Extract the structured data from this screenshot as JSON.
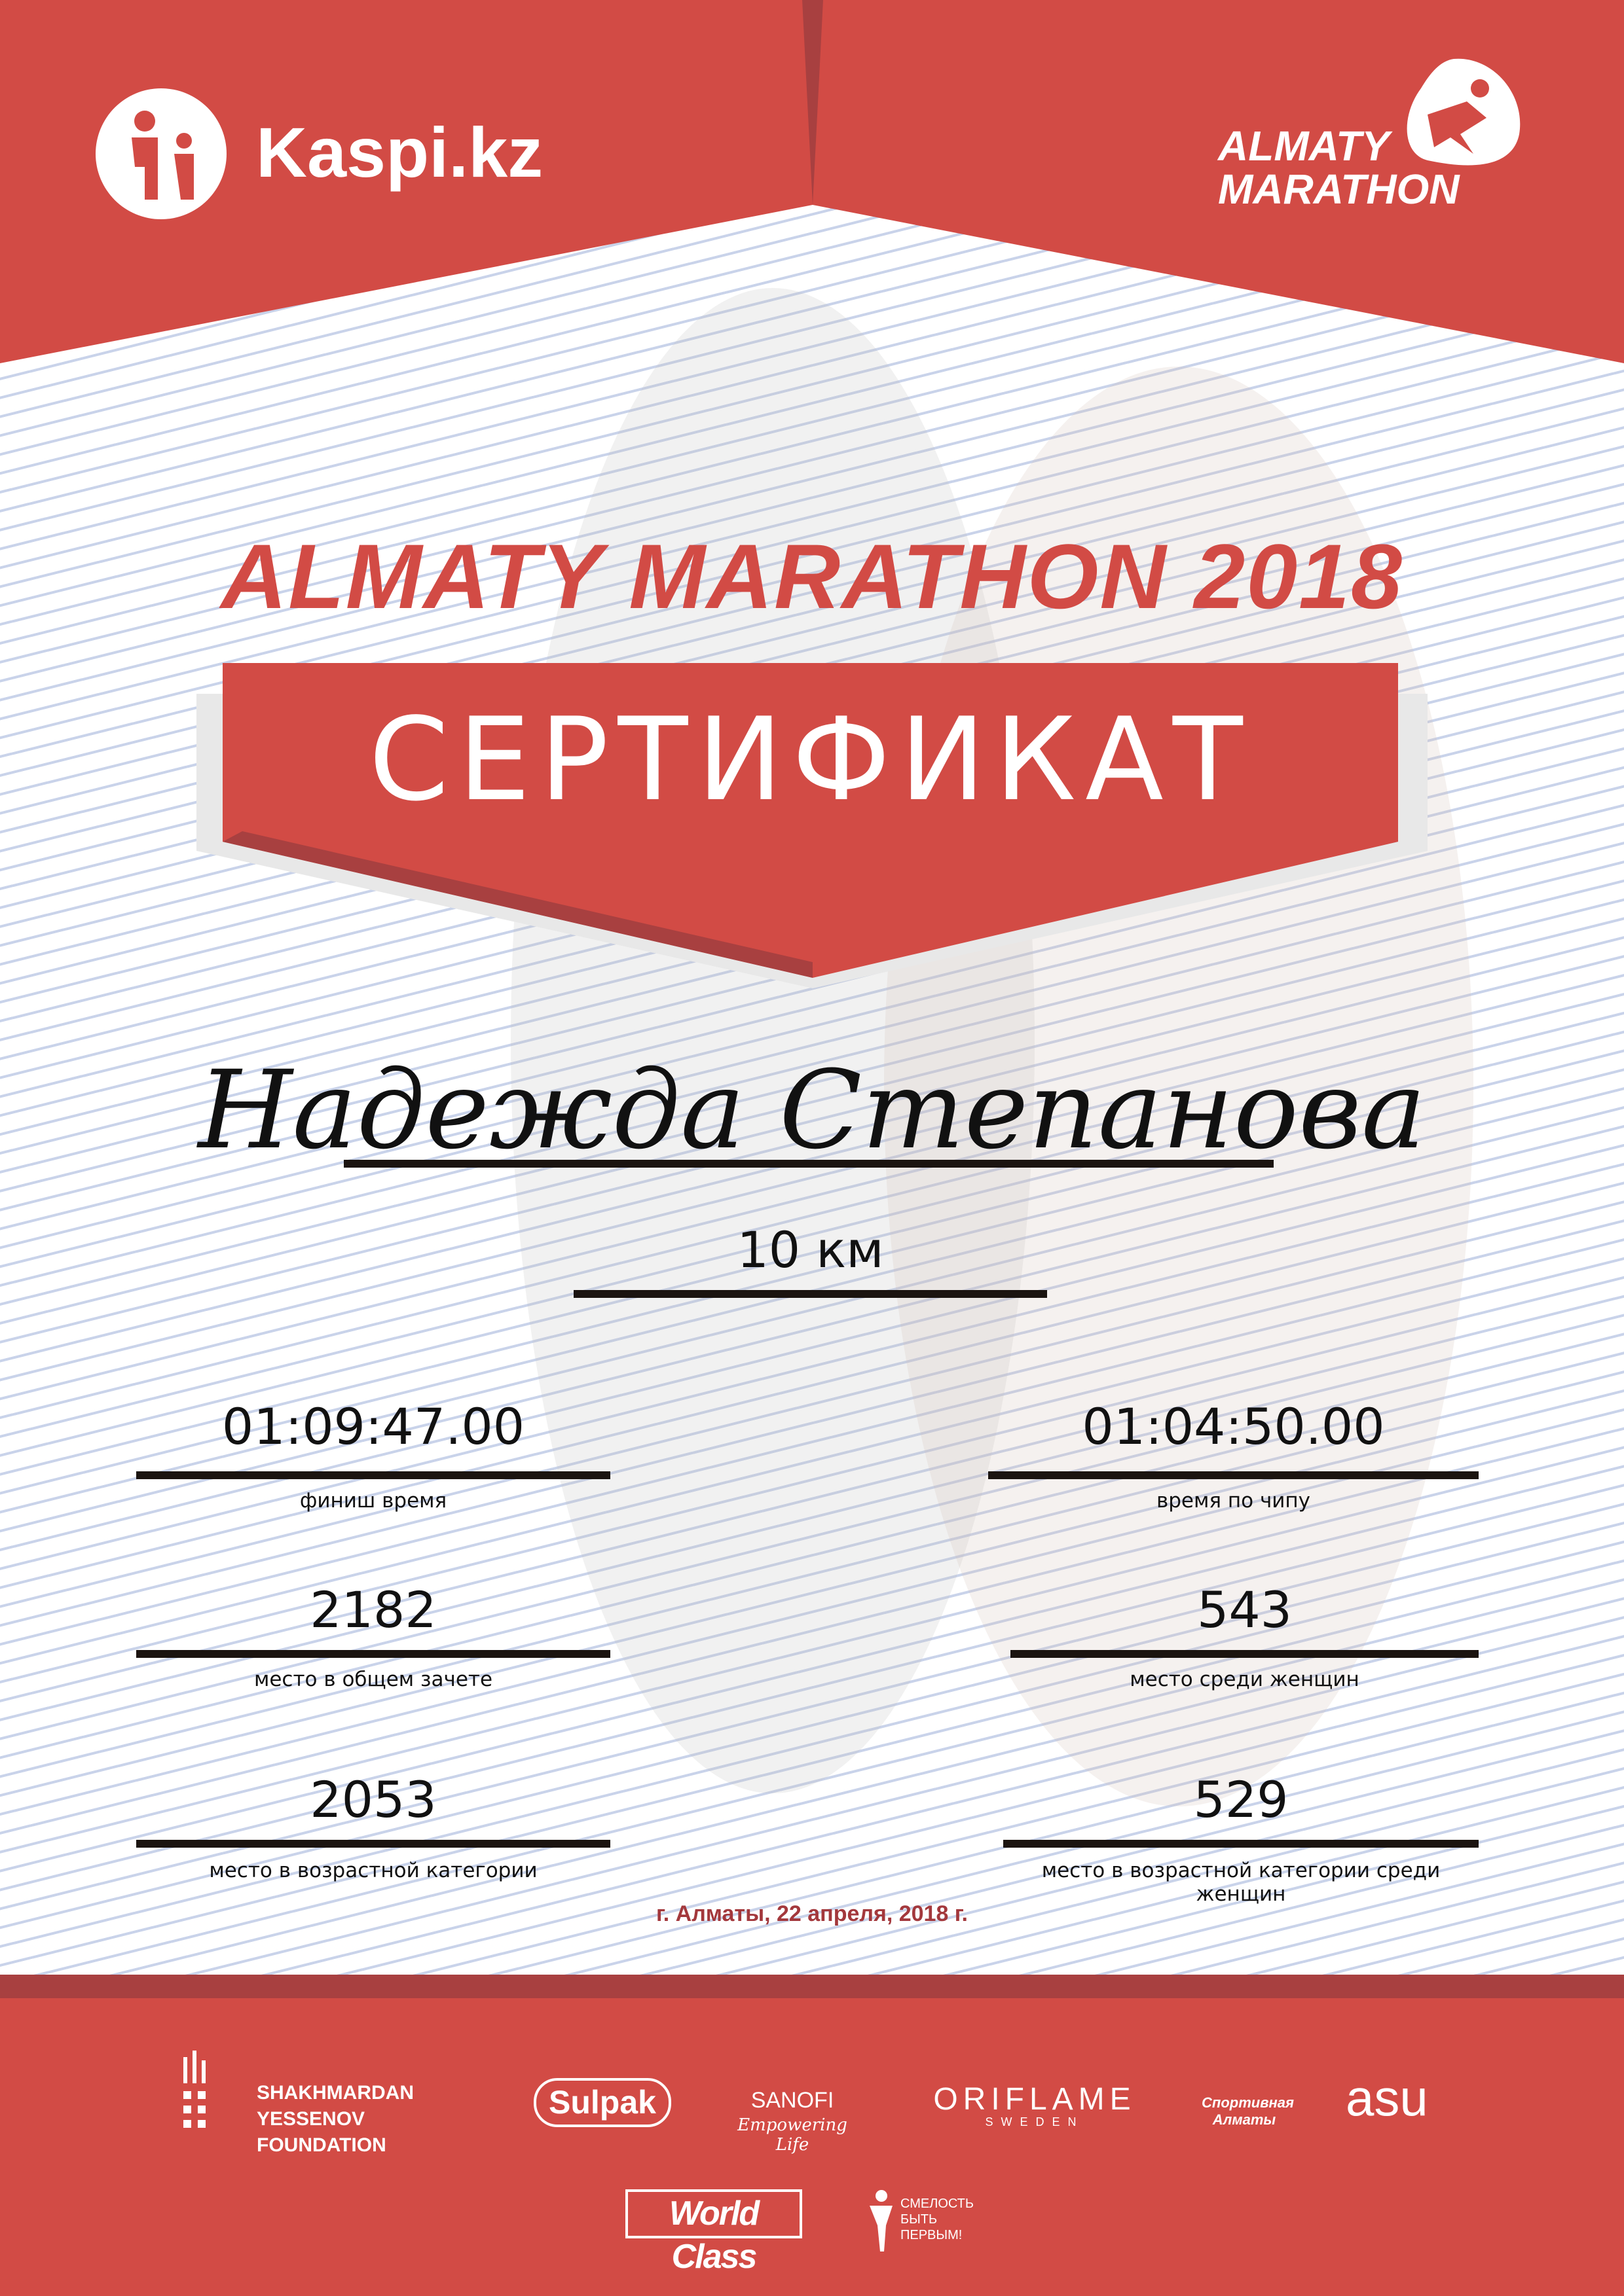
{
  "header": {
    "left_logo": "Kaspi.kz",
    "right_logo_line1": "ALMATY",
    "right_logo_line2": "MARATHON"
  },
  "event_title": "ALMATY MARATHON 2018",
  "certificate_label": "СЕРТИФИКАТ",
  "participant_name": "Надежда Степанова",
  "distance": "10 км",
  "results": [
    {
      "value": "01:09:47.00",
      "label": "финиш время"
    },
    {
      "value": "01:04:50.00",
      "label": "время по чипу"
    },
    {
      "value": "2182",
      "label": "место в общем зачете"
    },
    {
      "value": "543",
      "label": "место среди женщин"
    },
    {
      "value": "2053",
      "label": "место в возрастной категории"
    },
    {
      "value": "529",
      "label": "место в возрастной категории среди женщин"
    }
  ],
  "date_line": "г. Алматы, 22 апреля, 2018 г.",
  "sponsors": {
    "yessenov": "SHAKHMARDAN YESSENOV FOUNDATION",
    "sulpak": "Sulpak",
    "sanofi": "SANOFI",
    "sanofi_tagline": "Empowering Life",
    "oriflame": "ORIFLAME",
    "oriflame_sub": "SWEDEN",
    "sport_almaty": "Спортивная Алматы",
    "asu": "asu",
    "worldclass": "World Class",
    "fund": "СМЕЛОСТЬ БЫТЬ ПЕРВЫМ!"
  },
  "colors": {
    "brand_red": "#d24b45",
    "dark_red": "#a84040",
    "date_red": "#a3383c"
  }
}
